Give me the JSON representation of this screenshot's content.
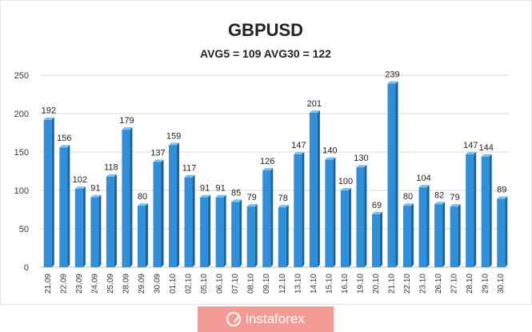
{
  "chart_data": {
    "type": "bar",
    "title": "GBPUSD",
    "subtitle": "AVG5 = 109 AVG30 = 122",
    "categories": [
      "21.09",
      "22.09",
      "23.09",
      "24.09",
      "25.09",
      "28.09",
      "29.09",
      "30.09",
      "01.10",
      "02.10",
      "05.10",
      "06.10",
      "07.10",
      "08.10",
      "09.10",
      "12.10",
      "13.10",
      "14.10",
      "15.10",
      "16.10",
      "19.10",
      "20.10",
      "21.10",
      "22.10",
      "23.10",
      "26.10",
      "27.10",
      "28.10",
      "29.10",
      "30.10"
    ],
    "values": [
      192,
      156,
      102,
      91,
      118,
      179,
      80,
      137,
      159,
      117,
      91,
      91,
      85,
      79,
      126,
      78,
      147,
      201,
      140,
      100,
      130,
      69,
      239,
      80,
      104,
      82,
      79,
      147,
      144,
      89
    ],
    "ylim": [
      0,
      250
    ],
    "yticks": [
      0,
      50,
      100,
      150,
      200,
      250
    ],
    "grid": true,
    "legend": "none",
    "colors": {
      "bar_fill": "#2f8fd8",
      "bar_dark": "#1c5f99",
      "bar_top": "#7cc0f0",
      "grid": "#d9d9d9",
      "axis": "#bfbfbf"
    }
  },
  "watermark": {
    "text": "instaforex",
    "icon": "instaforex-logo-icon",
    "color": "#f39b94"
  }
}
